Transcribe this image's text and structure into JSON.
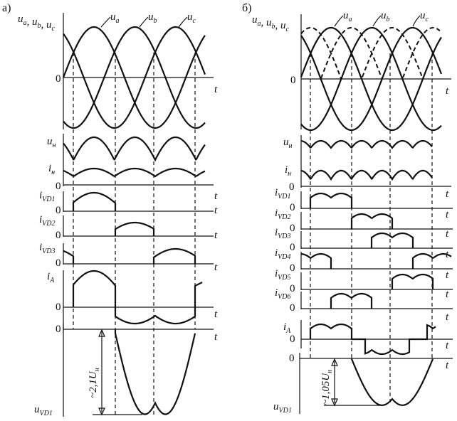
{
  "panels": [
    {
      "id": "a",
      "title": "а)",
      "phase_axis_label": "u_a, u_b, u_c",
      "phase_labels": [
        "u_a",
        "u_b",
        "u_c"
      ],
      "zero": "0",
      "t": "t",
      "rows": [
        "u_н",
        "i_н",
        "i_VD1",
        "i_VD2",
        "i_VD3",
        "i_A",
        "u_VD1"
      ],
      "dimension": "~2,1U_н"
    },
    {
      "id": "b",
      "title": "б)",
      "phase_axis_label": "u_a, u_b, u_c",
      "phase_labels": [
        "u_a",
        "u_b",
        "u_c"
      ],
      "zero": "0",
      "t": "t",
      "rows": [
        "u_н",
        "i_н",
        "i_VD1",
        "i_VD2",
        "i_VD3",
        "i_VD4",
        "i_VD5",
        "i_VD6",
        "i_A",
        "u_VD1"
      ],
      "dimension": "~1,05U_н"
    }
  ],
  "colors": {
    "ink": "#111111",
    "background": "#ffffff"
  }
}
